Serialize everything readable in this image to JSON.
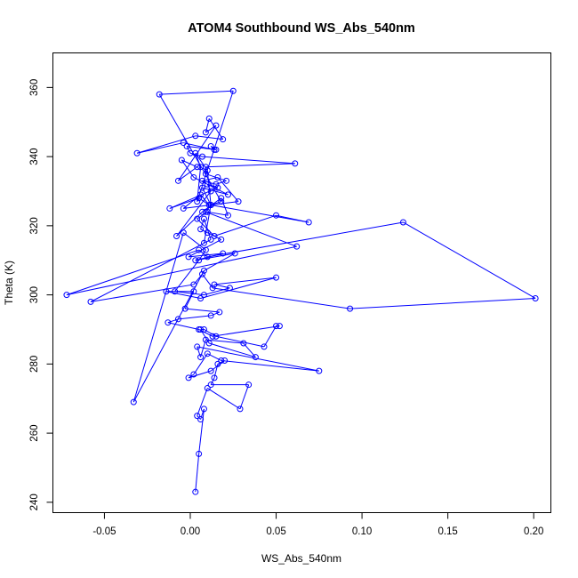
{
  "chart_data": {
    "type": "line",
    "title": "ATOM4 Southbound WS_Abs_540nm",
    "xlabel": "WS_Abs_540nm",
    "ylabel": "Theta (K)",
    "xlim": [
      -0.08,
      0.21
    ],
    "ylim": [
      237,
      370
    ],
    "xticks": [
      -0.05,
      0.0,
      0.05,
      0.1,
      0.15,
      0.2
    ],
    "xtick_labels": [
      "-0.05",
      "0.00",
      "0.05",
      "0.10",
      "0.15",
      "0.20"
    ],
    "yticks": [
      240,
      260,
      280,
      300,
      320,
      340,
      360
    ],
    "ytick_labels": [
      "240",
      "260",
      "280",
      "300",
      "320",
      "340",
      "360"
    ],
    "grid": false,
    "series": [
      {
        "color": "#0000ff",
        "marker": "open-circle",
        "x": [
          0.003,
          0.005,
          0.008,
          0.006,
          0.004,
          0.01,
          0.029,
          0.034,
          0.012,
          0.014,
          0.016,
          0.02,
          0.012,
          -0.001,
          0.002,
          0.01,
          0.018,
          0.075,
          0.004,
          0.006,
          0.009,
          0.031,
          0.038,
          0.011,
          0.006,
          0.008,
          0.015,
          0.043,
          0.05,
          0.052,
          0.013,
          0.005,
          -0.013,
          -0.007,
          0.012,
          0.017,
          -0.003,
          0.002,
          -0.014,
          0.006,
          0.05,
          0.014,
          0.023,
          0.008,
          -0.009,
          0.005,
          0.009,
          -0.004,
          -0.033,
          0.008,
          0.026,
          0.003,
          0.019,
          -0.001,
          0.018,
          0.01,
          0.006,
          0.008,
          0.012,
          -0.058,
          0.002,
          0.007,
          0.013,
          0.093,
          0.201,
          0.124,
          0.01,
          0.005,
          -0.072,
          0.062,
          0.009,
          0.012,
          0.069,
          0.05,
          0.014,
          0.004,
          0.01,
          0.022,
          0.018,
          0.007,
          -0.008,
          0.012,
          0.01,
          0.016,
          -0.012,
          0.005,
          0.011,
          0.006,
          -0.004,
          0.028,
          0.016,
          0.007,
          0.015,
          0.021,
          0.009,
          0.009,
          0.061,
          0.007,
          0.0,
          -0.002,
          0.015,
          0.012,
          0.014,
          -0.004,
          -0.031,
          0.003,
          0.019,
          0.011,
          0.009,
          0.015,
          -0.007,
          0.004,
          -0.005,
          0.002,
          0.022,
          0.007,
          0.012,
          0.018,
          -0.018,
          0.025,
          0.004,
          0.006,
          0.003,
          0.01,
          0.012,
          0.008
        ],
        "y": [
          243,
          254,
          267,
          264,
          265,
          273,
          267,
          274,
          274,
          276,
          280,
          281,
          278,
          276,
          277,
          283,
          281,
          278,
          285,
          282,
          287,
          286,
          282,
          286,
          290,
          290,
          288,
          285,
          291,
          291,
          288,
          290,
          292,
          293,
          294,
          295,
          296,
          301,
          301,
          299,
          305,
          303,
          302,
          300,
          301,
          310,
          313,
          318,
          269,
          307,
          312,
          310,
          312,
          311,
          316,
          318,
          319,
          322,
          316,
          298,
          303,
          306,
          302,
          296,
          299,
          321,
          311,
          313,
          300,
          314,
          324,
          326,
          321,
          323,
          317,
          322,
          324,
          323,
          328,
          324,
          317,
          330,
          332,
          331,
          325,
          328,
          326,
          329,
          325,
          327,
          334,
          333,
          332,
          333,
          335,
          337,
          338,
          340,
          341,
          343,
          342,
          343,
          342,
          344,
          341,
          346,
          345,
          351,
          347,
          349,
          333,
          337,
          339,
          334,
          329,
          331,
          326,
          327,
          358,
          359,
          327,
          337,
          341,
          336,
          326,
          315
        ]
      }
    ]
  }
}
